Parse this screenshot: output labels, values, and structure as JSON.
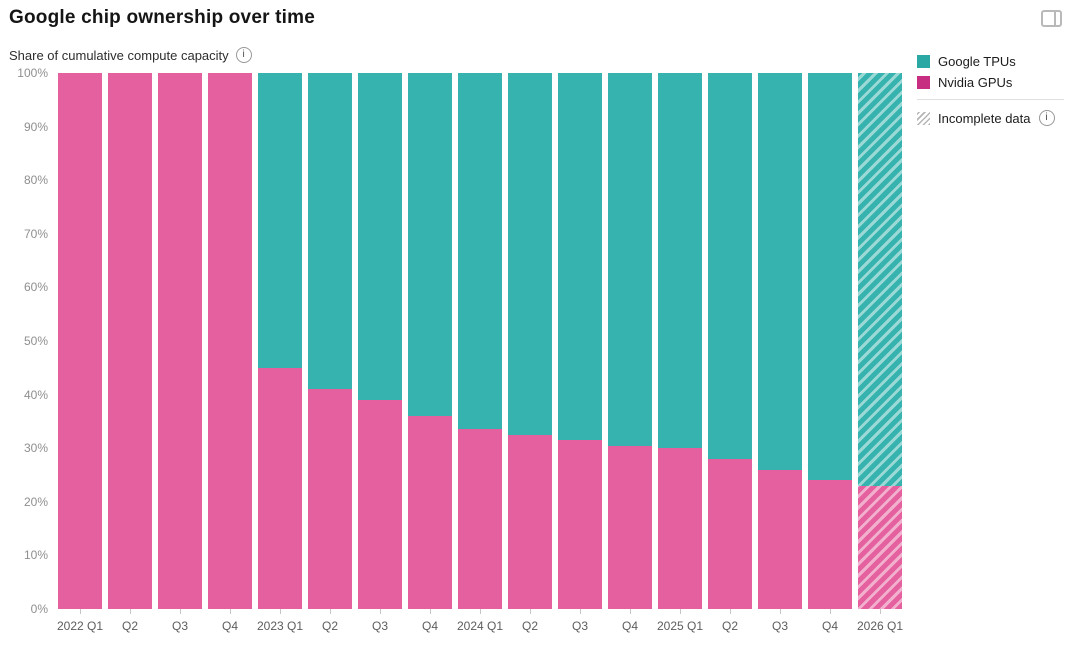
{
  "header": {
    "title": "Google chip ownership over time",
    "subtitle": "Share of cumulative compute capacity"
  },
  "window": {
    "panel_toggle_icon": "panel-right-toggle"
  },
  "legend": {
    "items": [
      {
        "label": "Google TPUs",
        "color": "#2aa9a4"
      },
      {
        "label": "Nvidia GPUs",
        "color": "#c72e81"
      }
    ],
    "incomplete_label": "Incomplete data",
    "position": "top-right"
  },
  "chart_data": {
    "type": "bar",
    "stacked": true,
    "title": "Google chip ownership over time",
    "ylabel": "Share of cumulative compute capacity",
    "unit": "percent",
    "ylim": [
      0,
      100
    ],
    "grid": false,
    "yticks": [
      "100%",
      "90%",
      "80%",
      "70%",
      "60%",
      "50%",
      "40%",
      "30%",
      "20%",
      "10%",
      "0%"
    ],
    "categories": [
      "2022 Q1",
      "Q2",
      "Q3",
      "Q4",
      "2023 Q1",
      "Q2",
      "Q3",
      "Q4",
      "2024 Q1",
      "Q2",
      "Q3",
      "Q4",
      "2025 Q1",
      "Q2",
      "Q3",
      "Q4",
      "2026 Q1"
    ],
    "series": [
      {
        "name": "Google TPUs",
        "color": "#36b3ae",
        "values": [
          0,
          0,
          0,
          0,
          55,
          59,
          61,
          64,
          66.5,
          67.5,
          68.5,
          69.5,
          70,
          72,
          74,
          76,
          77
        ]
      },
      {
        "name": "Nvidia GPUs",
        "color": "#e5609e",
        "values": [
          100,
          100,
          100,
          100,
          45,
          41,
          39,
          36,
          33.5,
          32.5,
          31.5,
          30.5,
          30,
          28,
          26,
          24,
          23
        ]
      }
    ],
    "incomplete_categories": [
      "2026 Q1"
    ],
    "incomplete_style": "diagonal-hatch"
  }
}
